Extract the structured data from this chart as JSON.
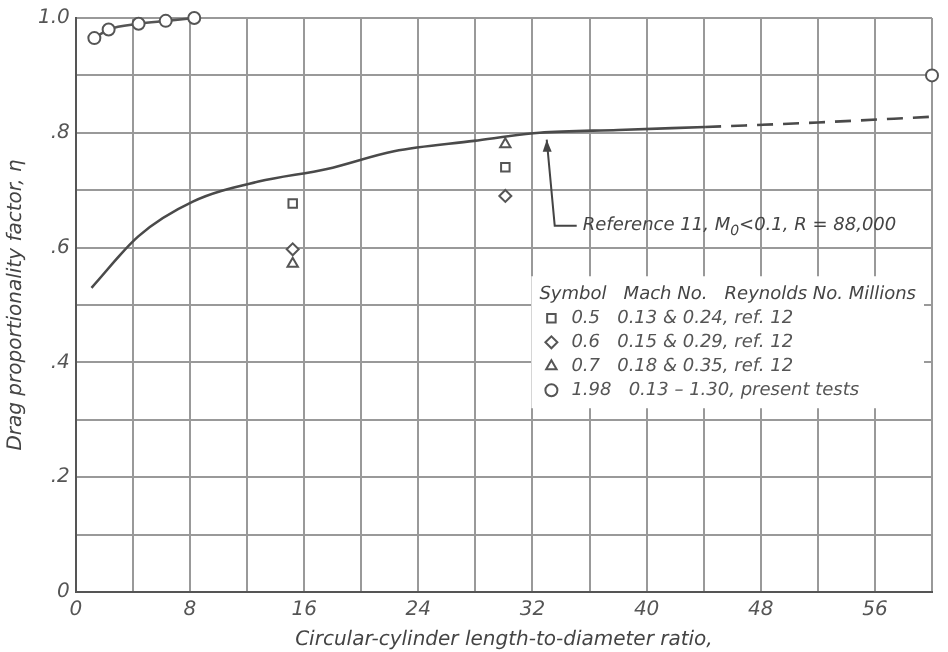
{
  "chart_data": {
    "type": "line",
    "xlabel": "Circular-cylinder length-to-diameter ratio,",
    "ylabel": "Drag proportionality factor, η",
    "xlim": [
      0,
      60
    ],
    "ylim": [
      0,
      1.0
    ],
    "xticks": [
      0,
      {
        "value": 4,
        "label": null
      },
      8,
      {
        "value": 12,
        "label": null
      },
      16,
      {
        "value": 20,
        "label": null
      },
      24,
      {
        "value": 28,
        "label": null
      },
      32,
      {
        "value": 36,
        "label": null
      },
      40,
      {
        "value": 44,
        "label": null
      },
      48,
      {
        "value": 52,
        "label": null
      },
      56,
      {
        "value": 60,
        "label": null
      }
    ],
    "yticks": [
      {
        "value": 0,
        "label": "0"
      },
      {
        "value": 0.1,
        "label": null
      },
      {
        "value": 0.2,
        "label": ".2"
      },
      {
        "value": 0.3,
        "label": null
      },
      {
        "value": 0.4,
        "label": ".4"
      },
      {
        "value": 0.5,
        "label": null
      },
      {
        "value": 0.6,
        "label": ".6"
      },
      {
        "value": 0.7,
        "label": null
      },
      {
        "value": 0.8,
        "label": ".8"
      },
      {
        "value": 0.9,
        "label": null
      },
      {
        "value": 1.0,
        "label": "1.0"
      }
    ],
    "grid": true,
    "legend": "right",
    "legend_title": "Symbol   Mach No.   Reynolds No. Millions",
    "annotations": [
      {
        "text": "Reference 11, M$_{0}$<0.1, R = 88,000",
        "x": 33,
        "y": 0.795
      }
    ],
    "series": [
      {
        "color": "#4a4a4a",
        "marker": "none",
        "line_style": "solid",
        "x": [
          1.1,
          4.4,
          8.2,
          12.8,
          17.6,
          22.3,
          27.9,
          32.5,
          38,
          44.1
        ],
        "values": [
          0.53,
          0.62,
          0.68,
          0.715,
          0.737,
          0.768,
          0.786,
          0.8,
          0.805,
          0.81
        ]
      },
      {
        "color": "#4a4a4a",
        "marker": "none",
        "line_style": "dashed",
        "x": [
          44.1,
          52,
          60
        ],
        "values": [
          0.81,
          0.818,
          0.828
        ]
      },
      {
        "type": "scatter",
        "name": "0.5   0.13 & 0.24, ref. 12",
        "color": "#555555",
        "marker": "square",
        "x": [
          15.2,
          30.1
        ],
        "values": [
          0.677,
          0.74
        ]
      },
      {
        "type": "scatter",
        "name": "0.6   0.15 & 0.29, ref. 12",
        "color": "#555555",
        "marker": "diamond",
        "x": [
          15.2,
          30.1
        ],
        "values": [
          0.597,
          0.69
        ]
      },
      {
        "type": "scatter",
        "name": "0.7   0.18 & 0.35, ref. 12",
        "color": "#555555",
        "marker": "triangle",
        "x": [
          15.2,
          30.1
        ],
        "values": [
          0.572,
          0.78
        ]
      },
      {
        "name": "1.98   0.13 – 1.30, present tests",
        "color": "#555555",
        "marker": "circle",
        "line_style": "solid",
        "x": [
          1.3,
          2.3,
          4.4,
          6.3,
          8.3
        ],
        "values": [
          0.965,
          0.98,
          0.99,
          0.995,
          1.0
        ]
      },
      {
        "type": "scatter",
        "color": "#555555",
        "marker": "circle",
        "x": [
          60
        ],
        "values": [
          0.9
        ]
      }
    ]
  }
}
